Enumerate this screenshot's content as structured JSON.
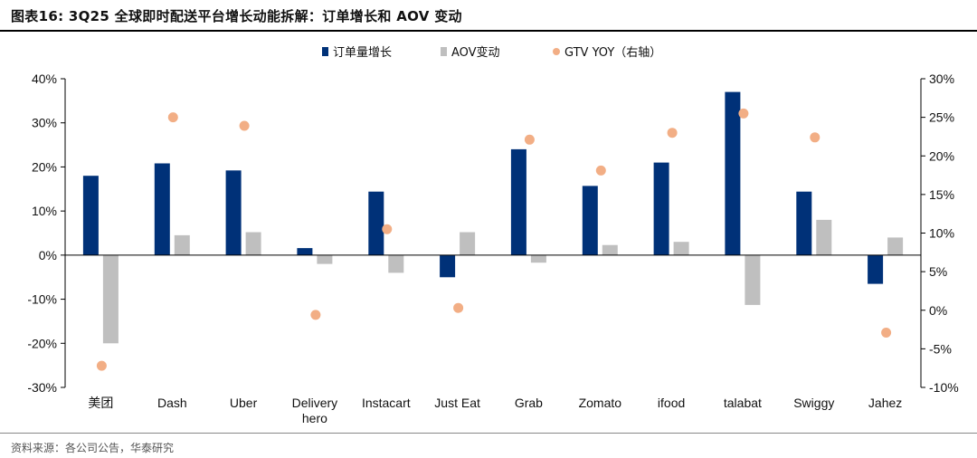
{
  "header": {
    "title": "图表16:   3Q25 全球即时配送平台增长动能拆解：订单增长和 AOV 变动"
  },
  "footer": {
    "source": "资料来源：各公司公告，华泰研究"
  },
  "colors": {
    "orders": "#003178",
    "aov": "#BFBFBF",
    "gtv": "#F2AE85",
    "axis": "#000000"
  },
  "chart_data": {
    "type": "bar",
    "categories": [
      "美团",
      "Dash",
      "Uber",
      "Delivery hero",
      "Instacart",
      "Just Eat",
      "Grab",
      "Zomato",
      "ifood",
      "talabat",
      "Swiggy",
      "Jahez"
    ],
    "series": [
      {
        "name": "订单量增长",
        "type": "bar",
        "axis": "left",
        "values": [
          18,
          20.8,
          19.2,
          1.6,
          14.4,
          -5,
          24,
          15.7,
          21,
          37,
          14.4,
          -6.5
        ]
      },
      {
        "name": "AOV变动",
        "type": "bar",
        "axis": "left",
        "values": [
          -20,
          4.5,
          5.2,
          -2,
          -4,
          5.2,
          -1.7,
          2.3,
          3,
          -11.3,
          8,
          4
        ]
      },
      {
        "name": "GTV YOY（右轴）",
        "type": "scatter",
        "axis": "right",
        "values": [
          -7.2,
          25,
          23.9,
          -0.6,
          10.5,
          0.3,
          22.1,
          18.1,
          23,
          25.5,
          22.4,
          -2.9
        ]
      }
    ],
    "y_left": {
      "ylim": [
        -30,
        40
      ],
      "ticks": [
        40,
        30,
        20,
        10,
        0,
        -10,
        -20,
        -30
      ],
      "tick_labels": [
        "40%",
        "30%",
        "20%",
        "10%",
        "0%",
        "-10%",
        "-20%",
        "-30%"
      ]
    },
    "y_right": {
      "ylim": [
        -10,
        30
      ],
      "ticks": [
        30,
        25,
        20,
        15,
        10,
        5,
        0,
        -5,
        -10
      ],
      "tick_labels": [
        "30%",
        "25%",
        "20%",
        "15%",
        "10%",
        "5%",
        "0%",
        "-5%",
        "-10%"
      ]
    },
    "legend": {
      "position": "top-center",
      "entries": [
        "订单量增长",
        "AOV变动",
        "GTV YOY（右轴）"
      ]
    },
    "xlabel": "",
    "ylabel": "",
    "grid": false
  }
}
